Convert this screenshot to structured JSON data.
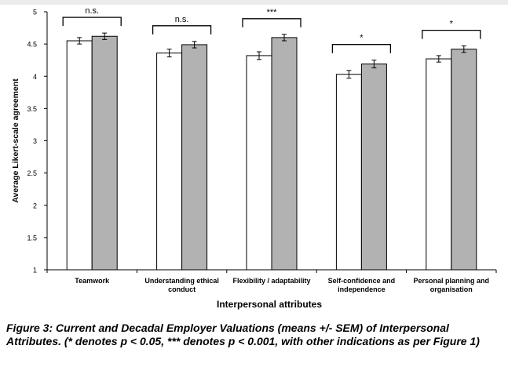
{
  "chart_data": {
    "type": "bar",
    "xlabel": "Interpersonal attributes",
    "ylabel": "Average Likert-scale agreement",
    "ylim": [
      1,
      5
    ],
    "yticks": [
      "1",
      "1.5",
      "2",
      "2.5",
      "3",
      "3.5",
      "4",
      "4.5",
      "5"
    ],
    "categories": [
      [
        "Teamwork"
      ],
      [
        "Understanding ethical",
        "conduct"
      ],
      [
        "Flexibility / adaptability"
      ],
      [
        "Self-confidence and",
        "independence"
      ],
      [
        "Personal planning and",
        "organisation"
      ]
    ],
    "series": [
      {
        "values": [
          4.55,
          4.36,
          4.32,
          4.03,
          4.27
        ],
        "errors": [
          0.05,
          0.06,
          0.06,
          0.06,
          0.05
        ],
        "color": "#ffffff"
      },
      {
        "values": [
          4.62,
          4.49,
          4.6,
          4.19,
          4.42
        ],
        "errors": [
          0.05,
          0.05,
          0.05,
          0.06,
          0.05
        ],
        "color": "#b2b2b2"
      }
    ],
    "significance": [
      "n.s.",
      "n.s.",
      "***",
      "*",
      "*"
    ],
    "grid": false,
    "legend": "none"
  },
  "caption": "Figure 3: Current and Decadal Employer Valuations (means +/- SEM) of Interpersonal Attributes. (* denotes p < 0.05, *** denotes p < 0.001, with other indications as per Figure 1)"
}
